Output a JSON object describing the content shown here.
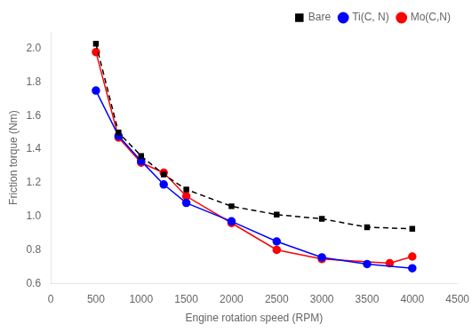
{
  "chart_data": {
    "type": "line",
    "xlabel": "Engine rotation speed (RPM)",
    "ylabel": "Friction torque (Nm)",
    "xlim": [
      0,
      4500
    ],
    "ylim": [
      0.6,
      2.1
    ],
    "xticks": [
      0,
      500,
      1000,
      1500,
      2000,
      2500,
      3000,
      3500,
      4000,
      4500
    ],
    "yticks": [
      0.6,
      0.8,
      {
        "value": 1.0,
        "label": "1.0"
      },
      1.2,
      1.4,
      1.6,
      1.8,
      {
        "value": 2.0,
        "label": "2.0"
      }
    ],
    "grid": false,
    "legend": "upper right",
    "series": [
      {
        "name": "Bare",
        "color": "#000000",
        "marker": "square",
        "line_style": "dashed",
        "x": [
          500,
          750,
          1000,
          1250,
          1500,
          2000,
          2500,
          3000,
          3500,
          4000
        ],
        "values": [
          2.03,
          1.5,
          1.36,
          1.25,
          1.16,
          1.06,
          1.01,
          0.985,
          0.935,
          0.925
        ]
      },
      {
        "name": "Ti(C, N)",
        "color": "#0000ff",
        "marker": "circle",
        "line_style": "solid",
        "x": [
          500,
          750,
          1000,
          1250,
          1500,
          2000,
          2500,
          3000,
          3500,
          4000
        ],
        "values": [
          1.75,
          1.48,
          1.33,
          1.19,
          1.08,
          0.97,
          0.85,
          0.755,
          0.715,
          0.69
        ]
      },
      {
        "name": "Mo(C,N)",
        "color": "#ff0000",
        "marker": "circle",
        "line_style": "solid",
        "x": [
          500,
          750,
          1000,
          1250,
          1500,
          2000,
          2500,
          3000,
          3750,
          4000
        ],
        "values": [
          1.98,
          1.47,
          1.32,
          1.26,
          1.12,
          0.96,
          0.8,
          0.745,
          0.72,
          0.76
        ]
      }
    ]
  }
}
